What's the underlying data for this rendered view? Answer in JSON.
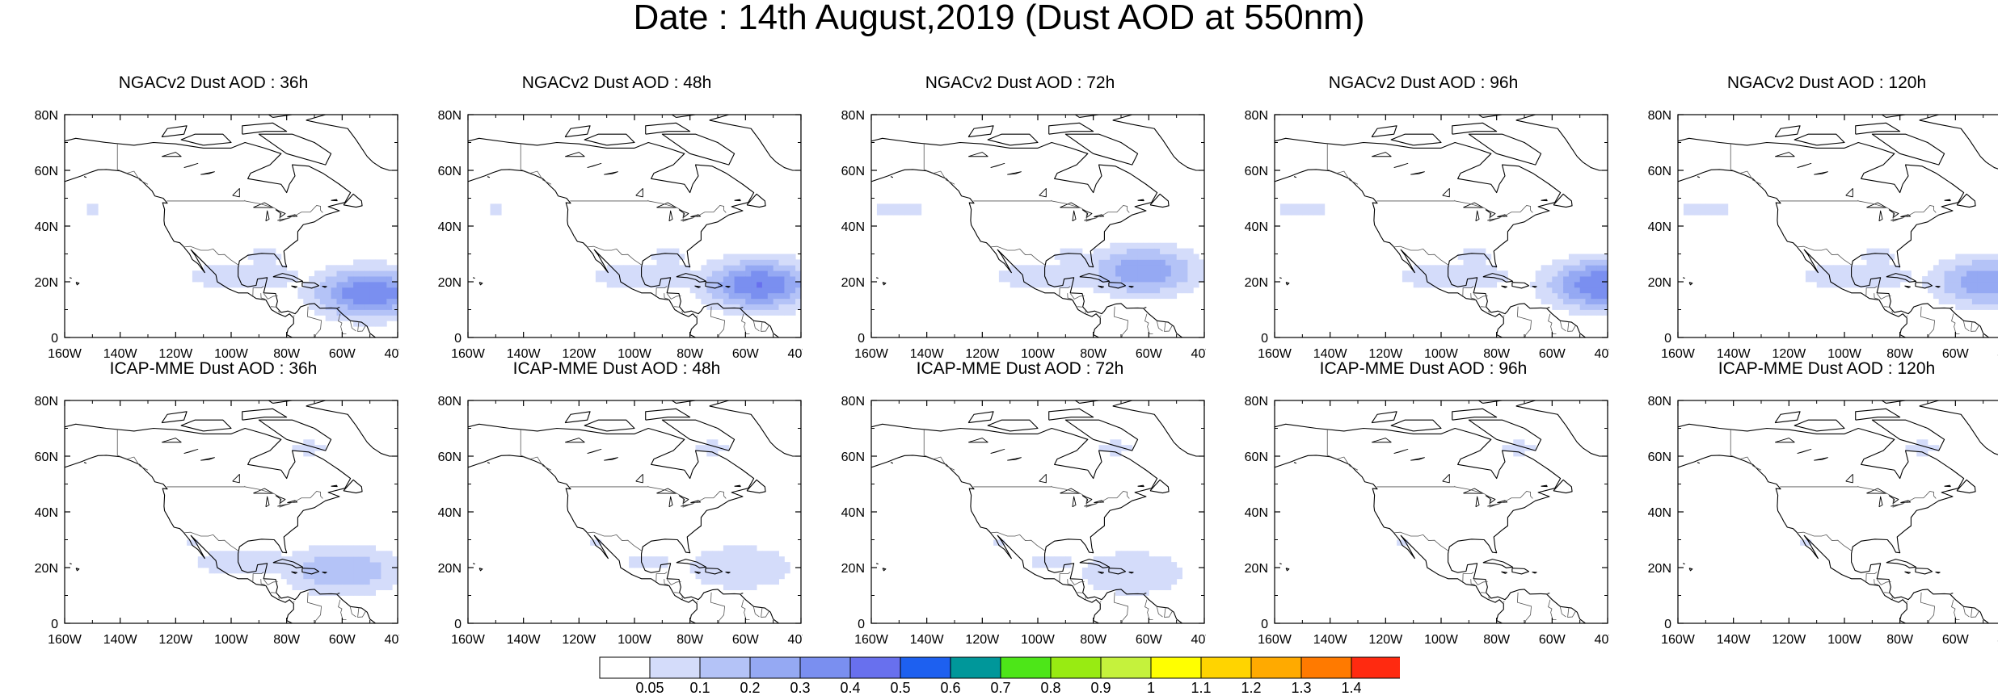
{
  "title": "Date : 14th August,2019 (Dust AOD at 550nm)",
  "axes": {
    "lat_ticks": [
      "80N",
      "60N",
      "40N",
      "20N",
      "0"
    ],
    "lon_ticks": [
      "160W",
      "140W",
      "120W",
      "100W",
      "80W",
      "60W",
      "40W"
    ]
  },
  "panels": [
    {
      "title": "NGACv2 Dust AOD : 36h",
      "peak_lon": -50,
      "peak_lat": 16,
      "peak_level": 5,
      "pacific_plume": 1
    },
    {
      "title": "NGACv2 Dust AOD : 48h",
      "peak_lon": -55,
      "peak_lat": 19,
      "peak_level": 5,
      "pacific_plume": 1
    },
    {
      "title": "NGACv2 Dust AOD : 72h",
      "peak_lon": -62,
      "peak_lat": 24,
      "peak_level": 4,
      "pacific_plume": 2
    },
    {
      "title": "NGACv2 Dust AOD : 96h",
      "peak_lon": -42,
      "peak_lat": 19,
      "peak_level": 5,
      "pacific_plume": 2
    },
    {
      "title": "NGACv2 Dust AOD : 120h",
      "peak_lon": -48,
      "peak_lat": 20,
      "peak_level": 4,
      "pacific_plume": 2
    },
    {
      "title": "ICAP-MME Dust AOD : 36h",
      "peak_lon": -60,
      "peak_lat": 19,
      "peak_level": 3,
      "pacific_plume": 0
    },
    {
      "title": "ICAP-MME Dust AOD : 48h",
      "peak_lon": -62,
      "peak_lat": 20,
      "peak_level": 2,
      "pacific_plume": 0
    },
    {
      "title": "ICAP-MME Dust AOD : 72h",
      "peak_lon": -66,
      "peak_lat": 18,
      "peak_level": 2,
      "pacific_plume": 0
    },
    {
      "title": "ICAP-MME Dust AOD : 96h",
      "peak_lon": -62,
      "peak_lat": 19,
      "peak_level": 1,
      "pacific_plume": 0
    },
    {
      "title": "ICAP-MME Dust AOD : 120h",
      "peak_lon": -58,
      "peak_lat": 22,
      "peak_level": 1,
      "pacific_plume": 0
    }
  ],
  "colorbar": {
    "colors": [
      "#ffffff",
      "#d4dcfa",
      "#b4c3f7",
      "#95a9f3",
      "#7a8ff0",
      "#6870ee",
      "#1d60f0",
      "#00979a",
      "#4de618",
      "#98eb12",
      "#c5f23c",
      "#ffff00",
      "#ffd400",
      "#ffaa00",
      "#ff7a00",
      "#ff2a10"
    ],
    "labels": [
      "0.05",
      "0.1",
      "0.2",
      "0.3",
      "0.4",
      "0.5",
      "0.6",
      "0.7",
      "0.8",
      "0.9",
      "1",
      "1.1",
      "1.2",
      "1.3",
      "1.4"
    ]
  }
}
